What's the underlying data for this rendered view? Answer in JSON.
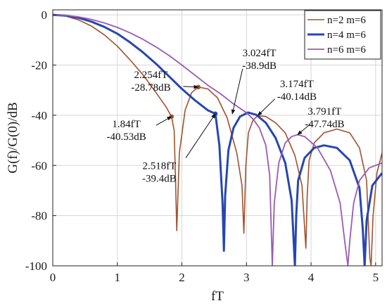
{
  "chart_data": {
    "type": "line",
    "xlabel": "fT",
    "ylabel": "G(f)/G(0)/dB",
    "xlim": [
      0,
      5.1
    ],
    "ylim": [
      -100,
      2
    ],
    "xticks": [
      0,
      1,
      2,
      3,
      4,
      5
    ],
    "yticks": [
      0,
      -20,
      -40,
      -60,
      -80,
      -100
    ],
    "grid": true,
    "legend_position": "top-right",
    "series": [
      {
        "name": "n=2 m=6",
        "color": "#a0522d",
        "stroke_width": 1.6,
        "x": [
          0,
          0.2,
          0.4,
          0.6,
          0.8,
          1.0,
          1.2,
          1.4,
          1.6,
          1.75,
          1.84,
          1.88,
          1.9,
          1.92,
          1.96,
          2.05,
          2.15,
          2.254,
          2.4,
          2.55,
          2.7,
          2.85,
          2.93,
          2.96,
          2.99,
          3.03,
          3.1,
          3.174,
          3.3,
          3.45,
          3.6,
          3.75,
          3.86,
          3.92,
          3.94,
          3.97,
          4.05,
          4.2,
          4.4,
          4.6,
          4.75,
          4.86,
          4.91,
          4.93,
          4.96,
          5.02,
          5.1
        ],
        "y": [
          0,
          -0.5,
          -2,
          -4.5,
          -8,
          -12.5,
          -18,
          -24,
          -31,
          -36.5,
          -40.53,
          -46,
          -65,
          -86,
          -55,
          -38,
          -31,
          -28.78,
          -29.5,
          -33,
          -41,
          -55,
          -68,
          -87,
          -60,
          -47,
          -42,
          -40.14,
          -40.5,
          -43,
          -47,
          -56,
          -68,
          -93,
          -72,
          -58,
          -51,
          -47,
          -45.5,
          -47,
          -53,
          -66,
          -97,
          -100,
          -80,
          -63,
          -55
        ]
      },
      {
        "name": "n=4 m=6",
        "color": "#2746b0",
        "stroke_width": 3,
        "x": [
          0,
          0.2,
          0.4,
          0.6,
          0.8,
          1.0,
          1.2,
          1.4,
          1.6,
          1.8,
          2.0,
          2.2,
          2.4,
          2.518,
          2.58,
          2.63,
          2.65,
          2.67,
          2.72,
          2.8,
          2.9,
          3.024,
          3.15,
          3.3,
          3.45,
          3.6,
          3.7,
          3.75,
          3.77,
          3.8,
          3.9,
          4.05,
          4.2,
          4.4,
          4.6,
          4.75,
          4.8,
          4.83,
          4.86,
          4.95,
          5.1
        ],
        "y": [
          0,
          -0.3,
          -1.2,
          -2.7,
          -4.8,
          -7.5,
          -11,
          -15,
          -19.5,
          -24.5,
          -29.5,
          -34,
          -38,
          -39.4,
          -52,
          -75,
          -94,
          -72,
          -54,
          -45,
          -40.5,
          -38.9,
          -39.8,
          -43,
          -49,
          -59,
          -74,
          -100,
          -80,
          -66,
          -57,
          -53,
          -52,
          -53,
          -58,
          -69,
          -85,
          -100,
          -82,
          -68,
          -63
        ]
      },
      {
        "name": "n=6 m=6",
        "color": "#9b59b6",
        "stroke_width": 1.8,
        "x": [
          0,
          0.2,
          0.4,
          0.6,
          0.8,
          1.0,
          1.2,
          1.4,
          1.6,
          1.8,
          2.0,
          2.2,
          2.4,
          2.6,
          2.8,
          3.0,
          3.1,
          3.2,
          3.3,
          3.36,
          3.4,
          3.43,
          3.5,
          3.6,
          3.7,
          3.791,
          3.9,
          4.1,
          4.3,
          4.45,
          4.53,
          4.57,
          4.6,
          4.66,
          4.75,
          4.9,
          5.1
        ],
        "y": [
          0,
          -0.2,
          -0.8,
          -1.8,
          -3.2,
          -5,
          -7.2,
          -9.8,
          -12.8,
          -16.2,
          -20,
          -24,
          -28,
          -31.5,
          -35.5,
          -39,
          -41.5,
          -45,
          -52,
          -64,
          -100,
          -75,
          -59,
          -51,
          -48.5,
          -47.74,
          -48.5,
          -53,
          -62,
          -75,
          -92,
          -100,
          -90,
          -75,
          -66,
          -61,
          -59
        ]
      }
    ],
    "markers": [
      {
        "series": 0,
        "x": 1.84,
        "y": -40.53
      },
      {
        "series": 0,
        "x": 2.254,
        "y": -28.78
      },
      {
        "series": 1,
        "x": 2.518,
        "y": -39.4
      }
    ],
    "annotations": [
      {
        "line1": "2.254fT",
        "line2": "-28.78dB",
        "text_x": 1.52,
        "text_y": -25.2,
        "arrow_from": [
          2.02,
          -28.5
        ],
        "arrow_to": [
          2.254,
          -28.78
        ]
      },
      {
        "line1": "1.84fT",
        "line2": "-40.53dB",
        "text_x": 1.14,
        "text_y": -44.8,
        "arrow_from": [
          1.6,
          -44.0
        ],
        "arrow_to": [
          1.84,
          -40.53
        ]
      },
      {
        "line1": "2.518fT",
        "line2": "-39.4dB",
        "text_x": 1.65,
        "text_y": -61.5,
        "arrow_from": [
          2.06,
          -57.0
        ],
        "arrow_to": [
          2.518,
          -39.4
        ]
      },
      {
        "line1": "3.024fT",
        "line2": "-38.9dB",
        "text_x": 3.2,
        "text_y": -16.5,
        "arrow_from": [
          2.94,
          -21.5
        ],
        "arrow_to": [
          2.78,
          -39.5
        ]
      },
      {
        "line1": "3.174fT",
        "line2": "-40.14dB",
        "text_x": 3.78,
        "text_y": -28.8,
        "arrow_from": [
          3.44,
          -33.5
        ],
        "arrow_to": [
          3.174,
          -40.14
        ]
      },
      {
        "line1": "3.791fT",
        "line2": "-47.74dB",
        "text_x": 4.21,
        "text_y": -39.8,
        "arrow_from": [
          3.99,
          -43.5
        ],
        "arrow_to": [
          3.791,
          -47.74
        ]
      }
    ]
  }
}
